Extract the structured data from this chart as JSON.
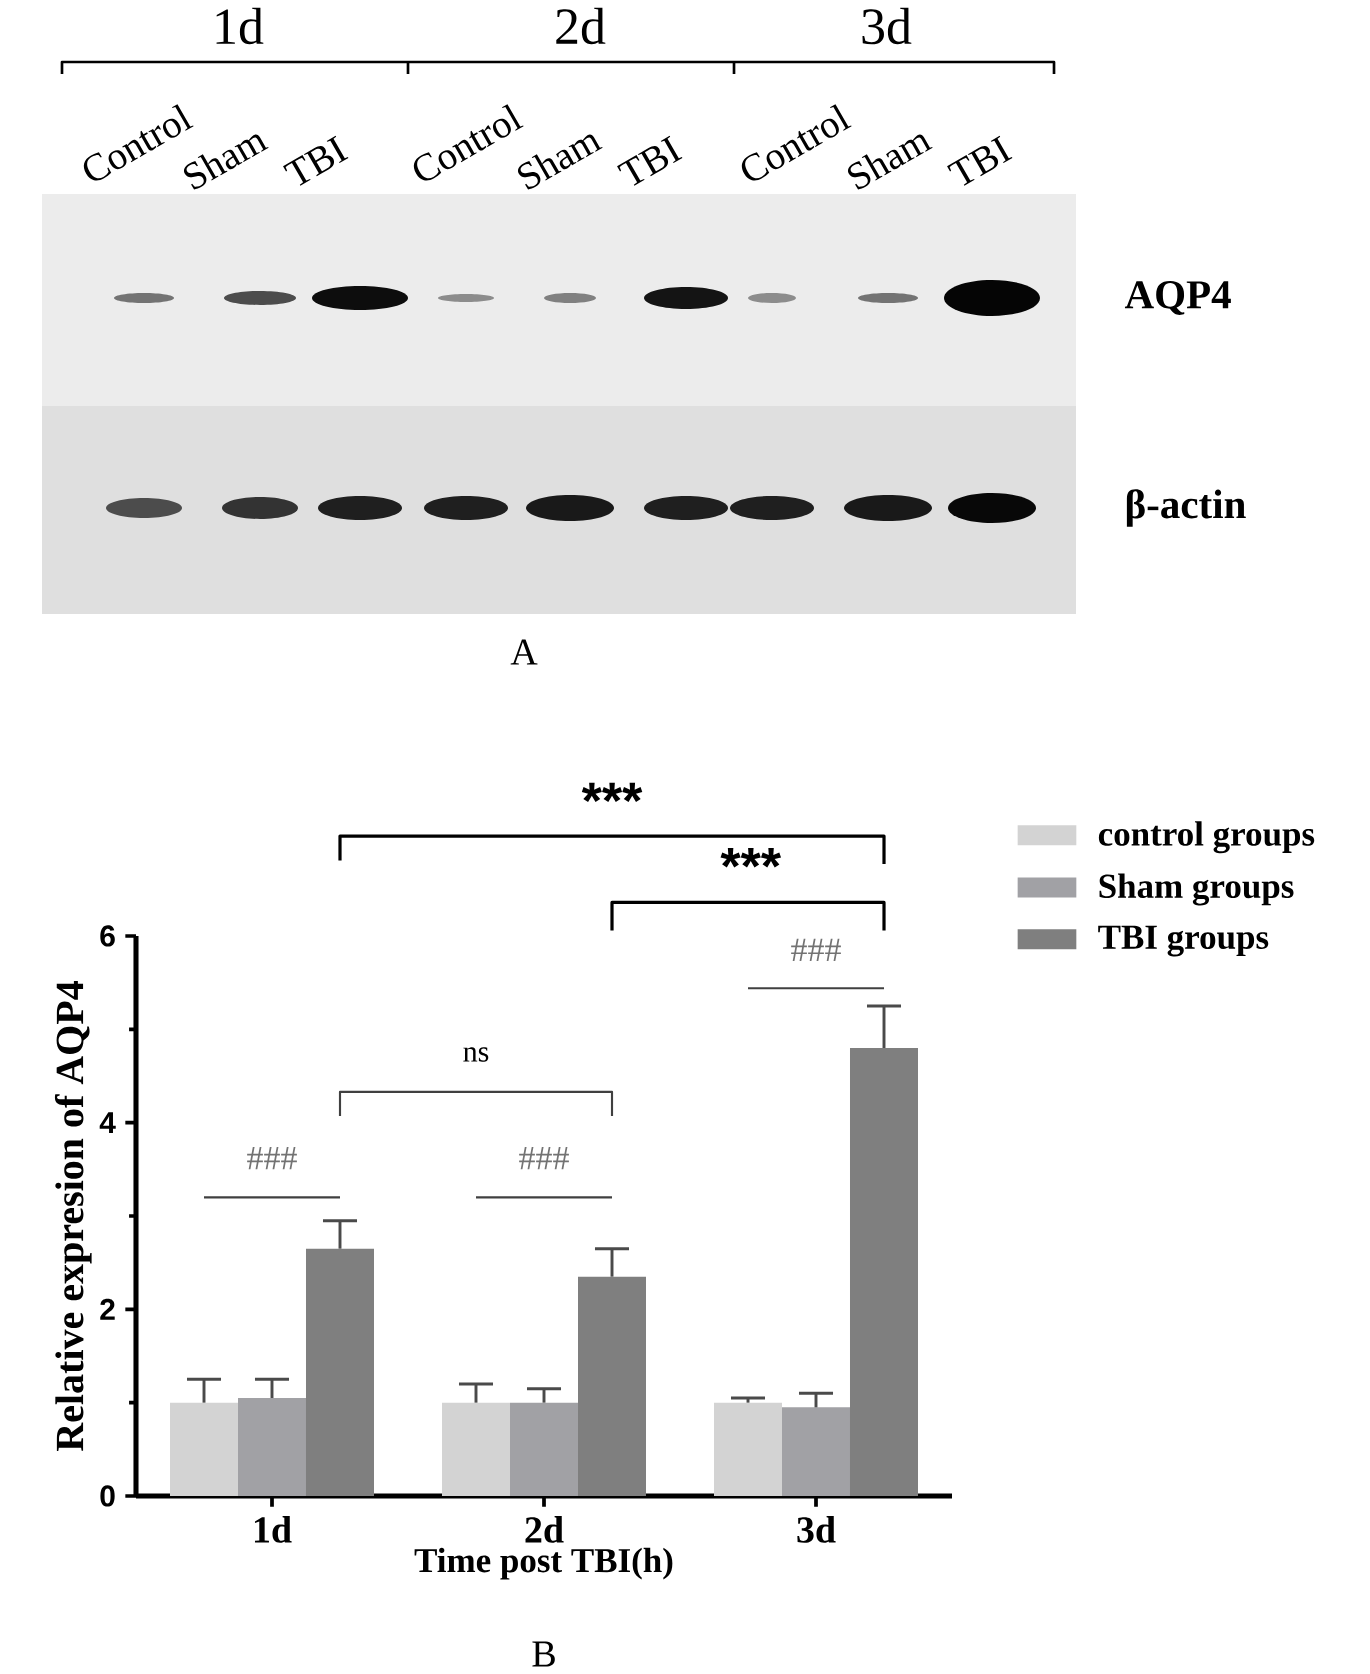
{
  "chart_data": {
    "type": "bar",
    "xlabel": "Time post TBI(h)",
    "ylabel": "Relative expresion of AQP4",
    "categories": [
      "1d",
      "2d",
      "3d"
    ],
    "series": [
      {
        "name": "control groups",
        "color": "#d3d3d3",
        "values": [
          1.0,
          1.0,
          1.0
        ],
        "errors": [
          [
            1.0,
            1.25
          ],
          [
            1.0,
            1.2
          ],
          [
            1.0,
            1.05
          ]
        ]
      },
      {
        "name": "Sham groups",
        "color": "#a1a1a5",
        "values": [
          1.05,
          1.0,
          0.95
        ],
        "errors": [
          [
            1.05,
            1.25
          ],
          [
            1.0,
            1.15
          ],
          [
            0.95,
            1.1
          ]
        ]
      },
      {
        "name": "TBI groups",
        "color": "#7f7f7f",
        "values": [
          2.65,
          2.35,
          4.8
        ],
        "errors": [
          [
            2.65,
            2.95
          ],
          [
            2.35,
            2.65
          ],
          [
            4.8,
            5.25
          ]
        ]
      }
    ],
    "ylim": [
      0,
      6
    ],
    "yticks": [
      0,
      {
        "value": 1,
        "label": null
      },
      2,
      {
        "value": 3,
        "label": null
      },
      4,
      {
        "value": 5,
        "label": null
      },
      6
    ],
    "legend": "top right",
    "annotations": [
      "***",
      "***",
      "###",
      "ns",
      "###",
      "###",
      "B",
      "1d",
      "2d",
      "3d",
      "Control",
      "Sham",
      "TBI",
      "Control",
      "Sham",
      "TBI",
      "Control",
      "Sham",
      "TBI",
      "AQP4",
      "β-actin",
      "A"
    ]
  }
}
